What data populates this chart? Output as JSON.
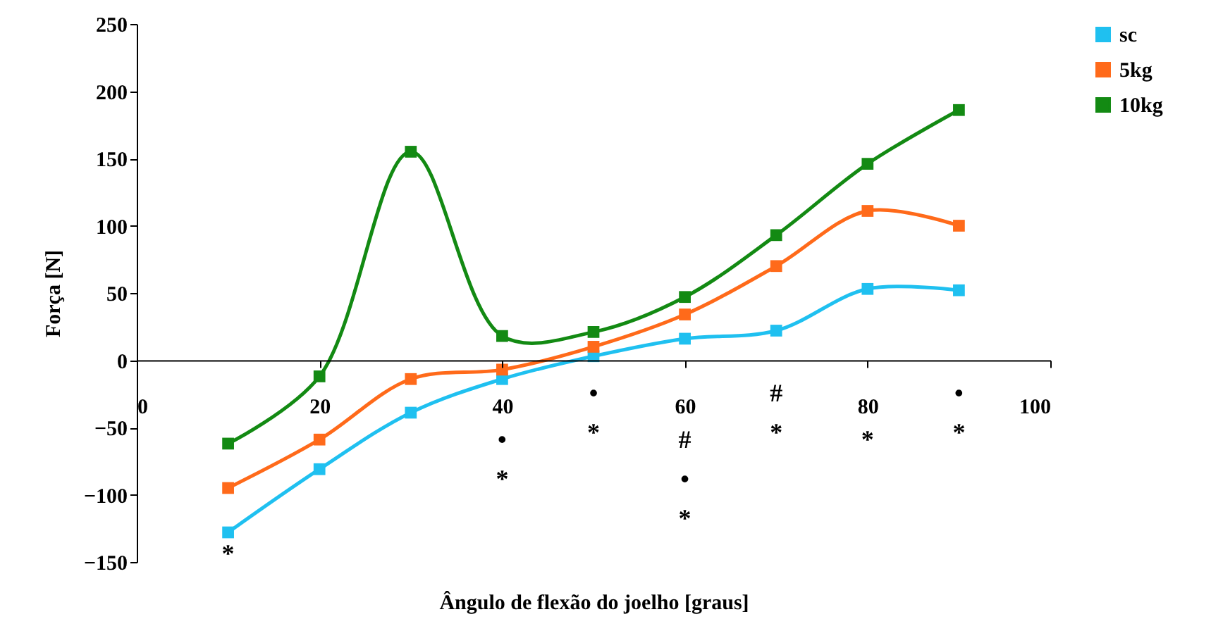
{
  "chart_data": {
    "type": "line",
    "xlabel": "Ângulo de flexão do joelho [graus]",
    "ylabel": "Força [N]",
    "x": [
      10,
      20,
      30,
      40,
      50,
      60,
      70,
      80,
      90
    ],
    "series": [
      {
        "name": "sc",
        "color": "#1fc0f0",
        "values": [
          -128,
          -81,
          -39,
          -14,
          3,
          16,
          22,
          53,
          52
        ]
      },
      {
        "name": "5kg",
        "color": "#ff6a1a",
        "values": [
          -95,
          -59,
          -14,
          -7,
          10,
          34,
          70,
          111,
          100
        ]
      },
      {
        "name": "10kg",
        "color": "#138a13",
        "values": [
          -62,
          -12,
          155,
          18,
          21,
          47,
          93,
          146,
          186
        ]
      }
    ],
    "xlim": [
      0,
      100
    ],
    "xticks": [
      0,
      20,
      40,
      60,
      80,
      100
    ],
    "ylim": [
      -150,
      250
    ],
    "yticks": [
      -150,
      -100,
      -50,
      0,
      50,
      100,
      150,
      200,
      250
    ],
    "grid": false,
    "legend": "top right",
    "marker": "square",
    "line_style": "solid",
    "annotations": [
      "*",
      "•",
      "*",
      "•",
      "*",
      "#",
      "•",
      "*",
      "#",
      "*",
      "*",
      "•",
      "*"
    ]
  }
}
